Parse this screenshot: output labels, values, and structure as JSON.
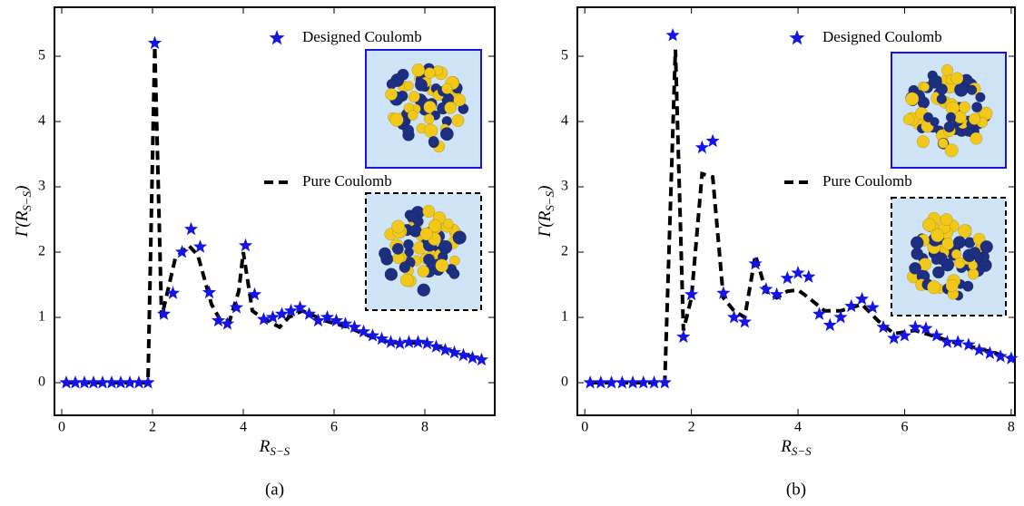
{
  "chart_data": [
    {
      "type": "line",
      "caption": "(a)",
      "xlabel": {
        "text": "R",
        "subscript": "S−S"
      },
      "ylabel": {
        "text": "Γ(R",
        "subscript": "S−S",
        "suffix": ")"
      },
      "xlim": [
        -0.16,
        9.54
      ],
      "ylim": [
        -0.5,
        5.75
      ],
      "xticks": [
        0,
        2,
        4,
        6,
        8
      ],
      "yticks": [
        0,
        1,
        2,
        3,
        4,
        5
      ],
      "series": [
        {
          "name": "Designed Coulomb",
          "color": "#1414e6",
          "marker": "star",
          "x": [
            0.1,
            0.3,
            0.5,
            0.7,
            0.9,
            1.1,
            1.3,
            1.5,
            1.7,
            1.9,
            2.05,
            2.25,
            2.45,
            2.65,
            2.85,
            3.05,
            3.25,
            3.45,
            3.65,
            3.85,
            4.05,
            4.25,
            4.45,
            4.65,
            4.85,
            5.05,
            5.25,
            5.45,
            5.65,
            5.85,
            6.05,
            6.25,
            6.45,
            6.65,
            6.85,
            7.05,
            7.25,
            7.45,
            7.65,
            7.85,
            8.05,
            8.25,
            8.45,
            8.65,
            8.85,
            9.05,
            9.25
          ],
          "values": [
            0,
            0,
            0,
            0,
            0,
            0,
            0,
            0,
            0,
            0,
            5.2,
            1.05,
            1.37,
            2.0,
            2.35,
            2.08,
            1.38,
            0.95,
            0.9,
            1.15,
            2.1,
            1.35,
            0.97,
            1.0,
            1.05,
            1.1,
            1.15,
            1.05,
            0.95,
            1.0,
            0.95,
            0.9,
            0.85,
            0.78,
            0.72,
            0.67,
            0.62,
            0.6,
            0.62,
            0.62,
            0.6,
            0.55,
            0.5,
            0.46,
            0.42,
            0.38,
            0.35
          ]
        },
        {
          "name": "Pure Coulomb",
          "color": "#000000",
          "dash": true,
          "x": [
            0.1,
            1.85,
            1.9,
            2.05,
            2.2,
            2.5,
            2.8,
            3.0,
            3.3,
            3.5,
            3.7,
            3.9,
            4.0,
            4.2,
            4.4,
            4.8,
            5.0,
            5.3,
            5.8,
            6.3,
            7.0,
            7.5,
            8.0,
            8.5,
            9.3
          ],
          "values": [
            0,
            0,
            0,
            5.15,
            1.0,
            1.9,
            2.1,
            1.95,
            1.2,
            0.95,
            0.95,
            1.4,
            2.0,
            1.1,
            1.0,
            0.85,
            1.0,
            1.1,
            0.95,
            0.85,
            0.65,
            0.6,
            0.62,
            0.5,
            0.35
          ]
        }
      ]
    },
    {
      "type": "line",
      "caption": "(b)",
      "xlabel": {
        "text": "R",
        "subscript": "S−S"
      },
      "ylabel": {
        "text": "Γ(R",
        "subscript": "S−S",
        "suffix": ")"
      },
      "xlim": [
        -0.14,
        8.07
      ],
      "ylim": [
        -0.5,
        5.75
      ],
      "xticks": [
        0,
        2,
        4,
        6,
        8
      ],
      "yticks": [
        0,
        1,
        2,
        3,
        4,
        5
      ],
      "series": [
        {
          "name": "Designed Coulomb",
          "color": "#1414e6",
          "marker": "star",
          "x": [
            0.1,
            0.3,
            0.5,
            0.7,
            0.9,
            1.1,
            1.3,
            1.5,
            1.65,
            1.85,
            2.0,
            2.2,
            2.4,
            2.6,
            2.8,
            3.0,
            3.2,
            3.4,
            3.6,
            3.8,
            4.0,
            4.2,
            4.4,
            4.6,
            4.8,
            5.0,
            5.2,
            5.4,
            5.6,
            5.8,
            6.0,
            6.2,
            6.4,
            6.6,
            6.8,
            7.0,
            7.2,
            7.4,
            7.6,
            7.8,
            8.0
          ],
          "values": [
            0,
            0,
            0,
            0,
            0,
            0,
            0,
            0,
            5.32,
            0.7,
            1.35,
            3.6,
            3.7,
            1.37,
            1.0,
            0.93,
            1.82,
            1.43,
            1.35,
            1.6,
            1.68,
            1.62,
            1.05,
            0.88,
            1.0,
            1.17,
            1.28,
            1.15,
            0.85,
            0.68,
            0.72,
            0.85,
            0.83,
            0.72,
            0.62,
            0.62,
            0.58,
            0.5,
            0.45,
            0.4,
            0.37
          ]
        },
        {
          "name": "Pure Coulomb",
          "color": "#000000",
          "dash": true,
          "x": [
            0.1,
            1.45,
            1.5,
            1.7,
            1.85,
            2.0,
            2.2,
            2.4,
            2.6,
            2.8,
            3.0,
            3.2,
            3.4,
            3.6,
            3.8,
            4.0,
            4.2,
            4.5,
            4.8,
            5.2,
            5.5,
            5.8,
            6.2,
            6.6,
            7.0,
            7.5,
            8.0
          ],
          "values": [
            0,
            0,
            0,
            5.1,
            0.8,
            1.3,
            3.2,
            3.15,
            1.3,
            1.1,
            1.0,
            1.95,
            1.4,
            1.3,
            1.4,
            1.42,
            1.3,
            1.1,
            1.1,
            1.2,
            0.95,
            0.75,
            0.8,
            0.7,
            0.6,
            0.5,
            0.38
          ]
        }
      ]
    }
  ]
}
